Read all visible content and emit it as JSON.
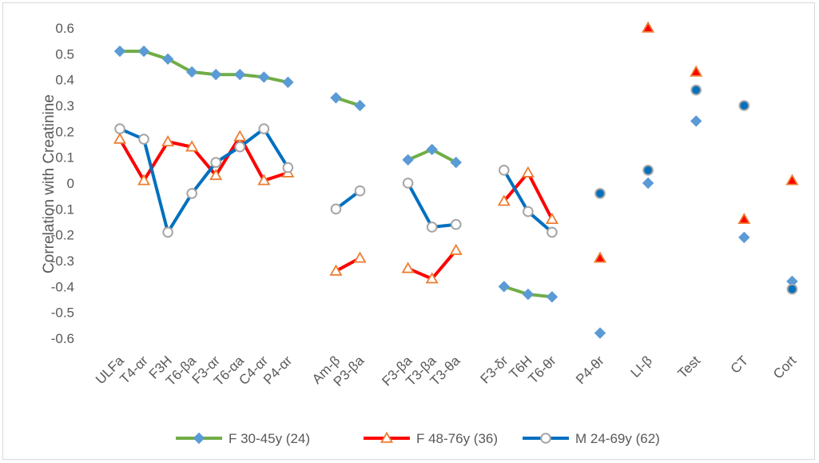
{
  "chart_data": {
    "type": "line",
    "ylabel": "Correlation with Creatinine",
    "xlabel": "",
    "title": "",
    "ylim": [
      -0.6,
      0.6
    ],
    "yticks": [
      0.6,
      0.5,
      0.4,
      0.3,
      0.2,
      0.1,
      0,
      -0.1,
      -0.2,
      -0.3,
      -0.4,
      -0.5,
      -0.6
    ],
    "legend_position": "bottom",
    "grid": false,
    "categories": [
      "ULFa",
      "T4-αr",
      "F3H",
      "T6-βa",
      "F3-αr",
      "T6-αa",
      "C4-αr",
      "P4-αr",
      "",
      "Am-β",
      "P3-βa",
      "",
      "F3-βa",
      "T3-βa",
      "T3-θa",
      "",
      "F3-δr",
      "T6H",
      "T6-θr",
      "",
      "P4-θr",
      "",
      "LI-β",
      "",
      "Test",
      "",
      "CT",
      "",
      "Cort"
    ],
    "series": [
      {
        "name": "F 30-45y (24)",
        "color": "#70AD47",
        "marker": "diamond",
        "marker_color": "#5B9BD5",
        "values": [
          0.51,
          0.51,
          0.48,
          0.43,
          0.42,
          0.42,
          0.41,
          0.39,
          null,
          0.33,
          0.3,
          null,
          0.09,
          0.13,
          0.08,
          null,
          -0.4,
          -0.43,
          -0.44,
          null,
          -0.58,
          null,
          0.0,
          null,
          0.24,
          null,
          -0.21,
          null,
          -0.38
        ]
      },
      {
        "name": "F 48-76y (36)",
        "color": "#FF0000",
        "marker": "triangle",
        "marker_color": "#ED7D31",
        "values": [
          0.17,
          0.01,
          0.16,
          0.14,
          0.03,
          0.18,
          0.01,
          0.04,
          null,
          -0.34,
          -0.29,
          null,
          -0.33,
          -0.37,
          -0.26,
          null,
          -0.07,
          0.04,
          -0.14,
          null,
          -0.29,
          null,
          0.6,
          null,
          0.43,
          null,
          -0.14,
          null,
          0.01
        ]
      },
      {
        "name": "M 24-69y (62)",
        "color": "#0070C0",
        "marker": "circle",
        "marker_color": "#A5A5A5",
        "values": [
          0.21,
          0.17,
          -0.19,
          -0.04,
          0.08,
          0.14,
          0.21,
          0.06,
          null,
          -0.1,
          -0.03,
          null,
          0.0,
          -0.17,
          -0.16,
          null,
          0.05,
          -0.11,
          -0.19,
          null,
          -0.04,
          null,
          0.05,
          null,
          0.36,
          null,
          0.3,
          null,
          -0.41
        ]
      }
    ],
    "single_point_style": {
      "F 48-76y (36)": {
        "fill": "#FF0000",
        "stroke": "#ED7D31"
      },
      "M 24-69y (62)": {
        "fill": "#0070C0",
        "stroke": "#A5A5A5"
      }
    }
  }
}
